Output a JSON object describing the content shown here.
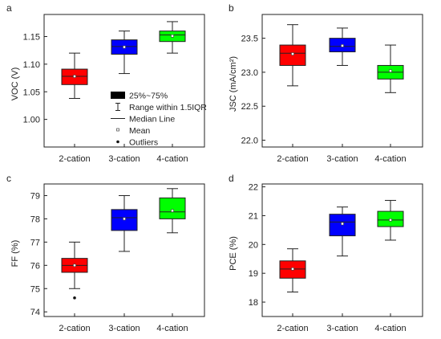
{
  "chart_data": [
    {
      "type": "box",
      "panel_label": "a",
      "ylabel": "VOC (V)",
      "ylim": [
        0.95,
        1.19
      ],
      "yticks": [
        "1.00",
        "1.05",
        "1.10",
        "1.15"
      ],
      "categories": [
        "2-cation",
        "3-cation",
        "4-cation"
      ],
      "colors": [
        "#ff0000",
        "#0000ff",
        "#00ff00"
      ],
      "boxes": [
        {
          "category": "2-cation",
          "whisker_low": 1.038,
          "q1": 1.063,
          "median": 1.078,
          "q3": 1.091,
          "whisker_high": 1.12,
          "mean": 1.078
        },
        {
          "category": "3-cation",
          "whisker_low": 1.083,
          "q1": 1.118,
          "median": 1.132,
          "q3": 1.144,
          "whisker_high": 1.16,
          "mean": 1.131
        },
        {
          "category": "4-cation",
          "whisker_low": 1.12,
          "q1": 1.141,
          "median": 1.153,
          "q3": 1.16,
          "whisker_high": 1.177,
          "mean": 1.151
        }
      ],
      "outliers": [],
      "legend": {
        "items": [
          {
            "symbol": "box",
            "label": "25%~75%"
          },
          {
            "symbol": "range",
            "label": "Range within 1.5IQR"
          },
          {
            "symbol": "line",
            "label": "Median Line"
          },
          {
            "symbol": "mean",
            "label": "Mean"
          },
          {
            "symbol": "outlier",
            "label": "Outliers"
          }
        ]
      }
    },
    {
      "type": "box",
      "panel_label": "b",
      "ylabel": "JSC (mA/cm²)",
      "ylim": [
        21.9,
        23.85
      ],
      "yticks": [
        "22.0",
        "22.5",
        "23.0",
        "23.5"
      ],
      "categories": [
        "2-cation",
        "3-cation",
        "4-cation"
      ],
      "colors": [
        "#ff0000",
        "#0000ff",
        "#00ff00"
      ],
      "boxes": [
        {
          "category": "2-cation",
          "whisker_low": 22.8,
          "q1": 23.1,
          "median": 23.28,
          "q3": 23.4,
          "whisker_high": 23.7,
          "mean": 23.27
        },
        {
          "category": "3-cation",
          "whisker_low": 23.1,
          "q1": 23.3,
          "median": 23.38,
          "q3": 23.5,
          "whisker_high": 23.65,
          "mean": 23.39
        },
        {
          "category": "4-cation",
          "whisker_low": 22.7,
          "q1": 22.9,
          "median": 23.0,
          "q3": 23.1,
          "whisker_high": 23.4,
          "mean": 23.02
        }
      ],
      "outliers": []
    },
    {
      "type": "box",
      "panel_label": "c",
      "ylabel": "FF (%)",
      "ylim": [
        73.8,
        79.5
      ],
      "yticks": [
        "74",
        "75",
        "76",
        "77",
        "78",
        "79"
      ],
      "categories": [
        "2-cation",
        "3-cation",
        "4-cation"
      ],
      "colors": [
        "#ff0000",
        "#0000ff",
        "#00ff00"
      ],
      "boxes": [
        {
          "category": "2-cation",
          "whisker_low": 75.0,
          "q1": 75.7,
          "median": 76.0,
          "q3": 76.3,
          "whisker_high": 77.0,
          "mean": 76.0
        },
        {
          "category": "3-cation",
          "whisker_low": 76.6,
          "q1": 77.5,
          "median": 78.05,
          "q3": 78.4,
          "whisker_high": 79.0,
          "mean": 78.0
        },
        {
          "category": "4-cation",
          "whisker_low": 77.4,
          "q1": 78.0,
          "median": 78.3,
          "q3": 78.9,
          "whisker_high": 79.3,
          "mean": 78.35
        }
      ],
      "outliers": [
        {
          "category": "2-cation",
          "value": 74.6
        }
      ]
    },
    {
      "type": "box",
      "panel_label": "d",
      "ylabel": "PCE (%)",
      "ylim": [
        17.5,
        22.1
      ],
      "yticks": [
        "18",
        "19",
        "20",
        "21",
        "22"
      ],
      "categories": [
        "2-cation",
        "3-cation",
        "4-cation"
      ],
      "colors": [
        "#ff0000",
        "#0000ff",
        "#00ff00"
      ],
      "boxes": [
        {
          "category": "2-cation",
          "whisker_low": 18.35,
          "q1": 18.83,
          "median": 19.15,
          "q3": 19.43,
          "whisker_high": 19.85,
          "mean": 19.15
        },
        {
          "category": "3-cation",
          "whisker_low": 19.6,
          "q1": 20.3,
          "median": 20.78,
          "q3": 21.05,
          "whisker_high": 21.3,
          "mean": 20.72
        },
        {
          "category": "4-cation",
          "whisker_low": 20.15,
          "q1": 20.62,
          "median": 20.85,
          "q3": 21.15,
          "whisker_high": 21.53,
          "mean": 20.85
        }
      ],
      "outliers": []
    }
  ]
}
